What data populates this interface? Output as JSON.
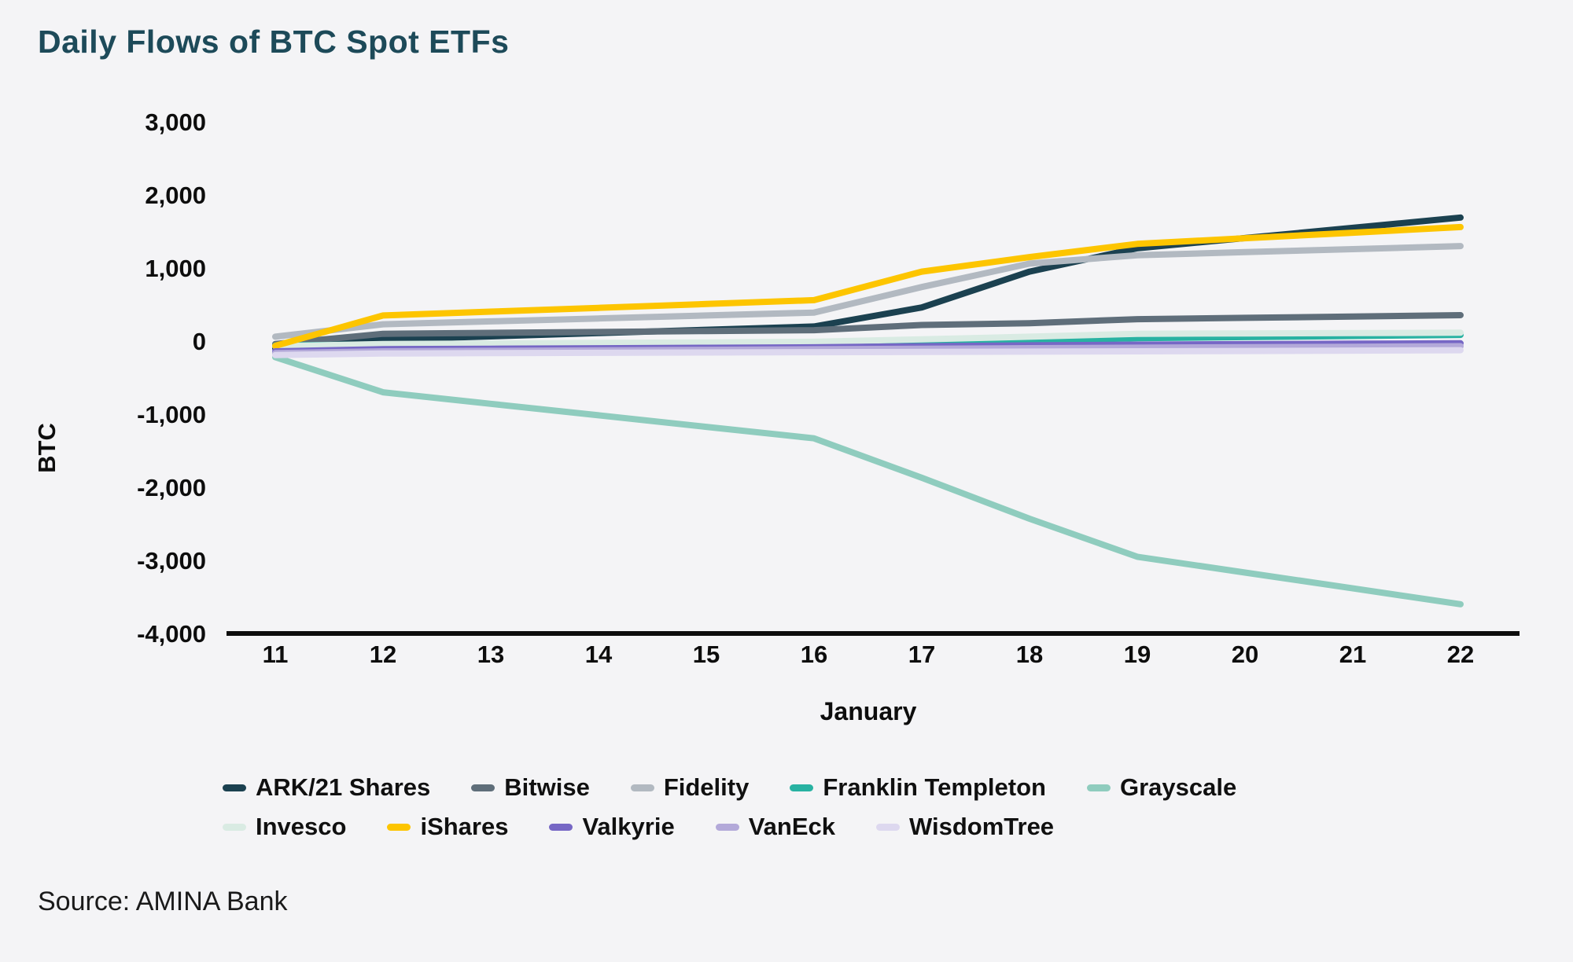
{
  "header": {
    "title": "Daily Flows of BTC Spot ETFs",
    "title_color": "#1d4a59"
  },
  "footer": {
    "source": "Source: AMINA Bank"
  },
  "colors": {
    "background": "#f4f4f6",
    "axis": "#0d0d0d",
    "tick_text": "#0d0d0d",
    "legend_text": "#101010"
  },
  "chart_data": {
    "type": "line",
    "title": "Daily Flows of BTC Spot ETFs",
    "xlabel": "January",
    "ylabel": "BTC",
    "grid": false,
    "legend_position": "bottom",
    "x": [
      11,
      12,
      13,
      14,
      15,
      16,
      17,
      18,
      19,
      20,
      21,
      22
    ],
    "x_tick_labels": [
      "11",
      "12",
      "13",
      "14",
      "15",
      "16",
      "17",
      "18",
      "19",
      "20",
      "21",
      "22"
    ],
    "ylim": [
      -4000,
      3000
    ],
    "y_ticks": [
      {
        "value": 3000,
        "label": "3,000"
      },
      {
        "value": 2000,
        "label": "2,000"
      },
      {
        "value": 1000,
        "label": "1,000"
      },
      {
        "value": 0,
        "label": "0"
      },
      {
        "value": -1000,
        "label": "-1,000"
      },
      {
        "value": -2000,
        "label": "-2,000"
      },
      {
        "value": -3000,
        "label": "-3,000"
      },
      {
        "value": -4000,
        "label": "-4,000"
      }
    ],
    "series": [
      {
        "name": "ARK/21 Shares",
        "color": "#1b4150",
        "values": [
          -100,
          20,
          65,
          110,
          155,
          200,
          460,
          950,
          1270,
          1410,
          1550,
          1690
        ]
      },
      {
        "name": "Bitwise",
        "color": "#5f6e7a",
        "values": [
          -40,
          100,
          113,
          125,
          138,
          150,
          220,
          245,
          300,
          318,
          336,
          355
        ]
      },
      {
        "name": "Fidelity",
        "color": "#b2b9c1",
        "values": [
          60,
          230,
          270,
          310,
          350,
          390,
          740,
          1060,
          1175,
          1217,
          1258,
          1300
        ]
      },
      {
        "name": "Franklin Templeton",
        "color": "#28b2a2",
        "values": [
          -60,
          -45,
          -41,
          -37,
          -33,
          -30,
          -15,
          5,
          40,
          55,
          70,
          85
        ]
      },
      {
        "name": "Grayscale",
        "color": "#8fccbe",
        "values": [
          -220,
          -700,
          -858,
          -1015,
          -1173,
          -1330,
          -1870,
          -2430,
          -2950,
          -3167,
          -3383,
          -3600
        ]
      },
      {
        "name": "Invesco",
        "color": "#d9ebe3",
        "values": [
          -70,
          -40,
          -33,
          -25,
          -18,
          -10,
          25,
          60,
          100,
          105,
          110,
          115
        ]
      },
      {
        "name": "iShares",
        "color": "#fdc500",
        "values": [
          -65,
          350,
          403,
          455,
          508,
          560,
          950,
          1150,
          1330,
          1407,
          1483,
          1560
        ]
      },
      {
        "name": "Valkyrie",
        "color": "#7667c5",
        "values": [
          -140,
          -110,
          -104,
          -98,
          -91,
          -85,
          -70,
          -58,
          -48,
          -42,
          -36,
          -30
        ]
      },
      {
        "name": "VanEck",
        "color": "#b3a9d9",
        "values": [
          -165,
          -140,
          -133,
          -126,
          -119,
          -112,
          -104,
          -97,
          -90,
          -83,
          -77,
          -70
        ]
      },
      {
        "name": "WisdomTree",
        "color": "#ddd8ef",
        "values": [
          -190,
          -170,
          -165,
          -160,
          -156,
          -152,
          -148,
          -144,
          -140,
          -135,
          -130,
          -125
        ]
      }
    ],
    "legend_rows": [
      [
        "ARK/21 Shares",
        "Bitwise",
        "Fidelity",
        "Franklin Templeton",
        "Grayscale"
      ],
      [
        "Invesco",
        "iShares",
        "Valkyrie",
        "VanEck",
        "WisdomTree"
      ]
    ]
  }
}
